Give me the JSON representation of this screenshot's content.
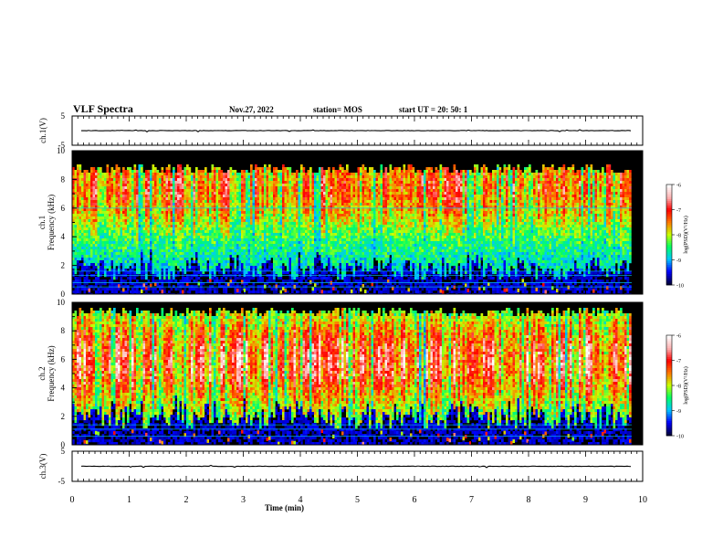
{
  "header": {
    "title": "VLF Spectra",
    "date": "Nov.27, 2022",
    "station": "station= MOS",
    "start_ut": "start  UT  =   20: 50: 1"
  },
  "colors": {
    "cmap": [
      "#00003c",
      "#0000ff",
      "#00c8ff",
      "#00ff64",
      "#c8ff00",
      "#ff7800",
      "#ff0000",
      "#ffb4b4",
      "#ffffff"
    ],
    "background": "#000000"
  },
  "chart_data": [
    {
      "type": "line",
      "ylabel": "ch.1(V)",
      "xlim": [
        0,
        10
      ],
      "ylim": [
        -5,
        5
      ],
      "yticks": [
        "5",
        "-5"
      ],
      "series": [
        {
          "values_summary": "flat near 0 V with small spikes",
          "level": 0
        }
      ]
    },
    {
      "type": "heatmap",
      "ylabel": "ch.1\nFrequency (kHz)",
      "ylabel_lines": [
        "ch.1",
        "Frequency (kHz)"
      ],
      "xlim": [
        0,
        9.85
      ],
      "ylim": [
        0,
        10
      ],
      "yticks": [
        "0",
        "2",
        "4",
        "6",
        "8",
        "10"
      ],
      "colorbar": {
        "label": "log(PSD)(V²/Hz)",
        "range": [
          -10,
          -6
        ],
        "ticks": [
          "-6",
          "-7",
          "-8",
          "-9",
          "-10"
        ]
      },
      "band_high_khz": 9.0,
      "noise_floor_khz": 2.6
    },
    {
      "type": "heatmap",
      "ylabel": "ch.2\nFrequency (kHz)",
      "ylabel_lines": [
        "ch.2",
        "Frequency (kHz)"
      ],
      "xlim": [
        0,
        9.85
      ],
      "ylim": [
        0,
        10
      ],
      "yticks": [
        "0",
        "2",
        "4",
        "6",
        "8",
        "10"
      ],
      "colorbar": {
        "label": "log(PSD)(V²/Hz)",
        "range": [
          -10,
          -6
        ],
        "ticks": [
          "-6",
          "-7",
          "-8",
          "-9",
          "-10"
        ]
      },
      "band_high_khz": 9.6,
      "noise_floor_khz": 3.0
    },
    {
      "type": "line",
      "ylabel": "ch.3(V)",
      "xlim": [
        0,
        10
      ],
      "ylim": [
        -5,
        5
      ],
      "yticks": [
        "5",
        "-5"
      ],
      "xlabel": "Time (min)",
      "xticks": [
        "0",
        "1",
        "2",
        "3",
        "4",
        "5",
        "6",
        "7",
        "8",
        "9",
        "10"
      ],
      "series": [
        {
          "values_summary": "flat near 0 V with small spikes",
          "level": 0
        }
      ]
    }
  ]
}
